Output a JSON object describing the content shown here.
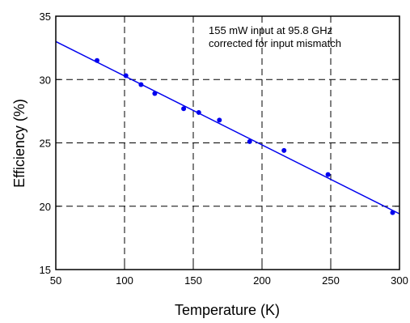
{
  "chart_data": {
    "type": "scatter",
    "xlabel": "Temperature (K)",
    "ylabel": "Efficiency (%)",
    "xlim": [
      50,
      300
    ],
    "ylim": [
      15,
      35
    ],
    "xticks": [
      50,
      100,
      150,
      200,
      250,
      300
    ],
    "yticks": [
      15,
      20,
      25,
      30,
      35
    ],
    "grid": true,
    "grid_style": "dashed",
    "annotation": [
      "155 mW input at 95.8 GHz",
      "corrected for input mismatch"
    ],
    "series": [
      {
        "kind": "points",
        "color": "#0000ee",
        "x": [
          80,
          101,
          112,
          122,
          143,
          154,
          169,
          191,
          216,
          248,
          295
        ],
        "y": [
          31.5,
          30.3,
          29.6,
          28.9,
          27.7,
          27.4,
          26.8,
          25.1,
          24.4,
          22.5,
          19.5
        ]
      },
      {
        "kind": "fit-line",
        "color": "#0000ee",
        "x": [
          50,
          300
        ],
        "y": [
          33.0,
          19.4
        ]
      }
    ]
  }
}
